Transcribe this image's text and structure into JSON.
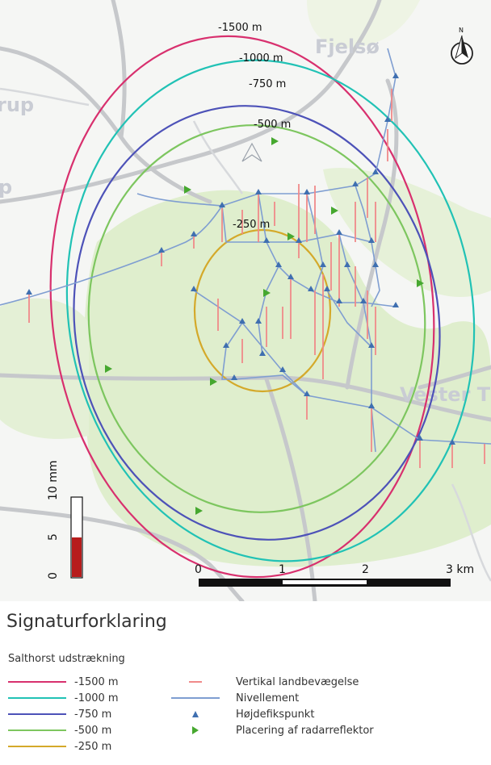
{
  "map": {
    "place_names": [
      "Fjelsø",
      "rup",
      "p",
      "Vester T"
    ],
    "contour_labels": [
      "-1500 m",
      "-1000 m",
      "-750 m",
      "-500 m",
      "-250 m"
    ],
    "north_arrow_label": "N",
    "scale_bar": {
      "ticks": [
        "0",
        "1",
        "2",
        "3 km"
      ]
    },
    "colorbar": {
      "unit": "10 mm",
      "ticks": [
        "0",
        "5"
      ],
      "value_mm": 5,
      "max_mm": 10
    },
    "colors": {
      "contour_1500": "#d8306e",
      "contour_1000": "#21c2b5",
      "contour_750": "#4d52b8",
      "contour_500": "#7dc65f",
      "contour_250": "#d4a92a",
      "vertical_motion": "#f08a8a",
      "leveling_line": "#7f9ed1",
      "benchmark": "#3f6fb0",
      "radar_reflector": "#46a82f",
      "forest": "#dfeecd",
      "road": "#c6c8cb",
      "colorbar_fill": "#b71c1c"
    }
  },
  "legend": {
    "title": "Signaturforklaring",
    "subtitle": "Salthorst udstrækning",
    "contours": [
      {
        "label": "-1500 m",
        "color": "#d8306e"
      },
      {
        "label": "-1000 m",
        "color": "#21c2b5"
      },
      {
        "label": "-750 m",
        "color": "#4d52b8"
      },
      {
        "label": "-500 m",
        "color": "#7dc65f"
      },
      {
        "label": "-250 m",
        "color": "#d4a92a"
      }
    ],
    "symbols": [
      {
        "label": "Vertikal landbevægelse",
        "icon": "vertical-motion-line"
      },
      {
        "label": "Nivellement",
        "icon": "leveling-line"
      },
      {
        "label": "Højdefikspunkt",
        "icon": "benchmark-triangle"
      },
      {
        "label": "Placering af radarreflektor",
        "icon": "radar-reflector-flag"
      }
    ]
  }
}
